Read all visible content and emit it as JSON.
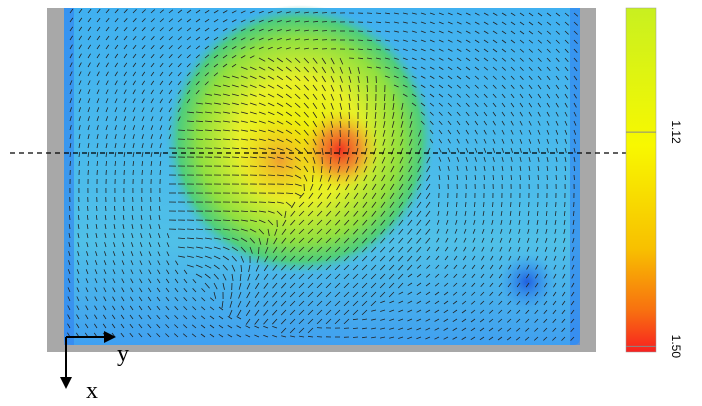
{
  "chart_data": {
    "type": "vector-field",
    "x_label": "x",
    "y_label": "y",
    "colorbar": {
      "clim": [
        0.9,
        1.51
      ],
      "ticks": [
        1.12,
        {
          "value": 1.5,
          "label": "1.50"
        }
      ]
    }
  }
}
